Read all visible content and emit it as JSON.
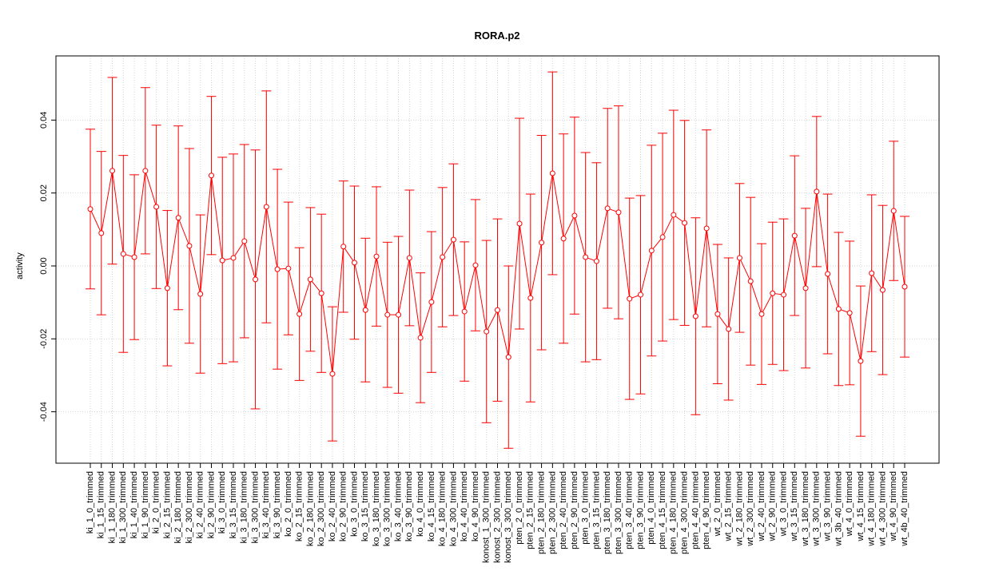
{
  "chart_data": {
    "type": "errorbar",
    "title": "RORA.p2",
    "y_label": "activity",
    "color": "red",
    "grid": true,
    "ylim": [
      -0.0541,
      0.0576
    ],
    "yticks": [
      -0.04,
      -0.02,
      {
        "value": 0,
        "label": "0.00"
      },
      0.02,
      0.04
    ],
    "categories": [
      "ki_1_0_trimmed",
      "ki_1_15_trimmed",
      "ki_1_180_trimmed",
      "ki_1_300_trimmed",
      "ki_1_40_trimmed",
      "ki_1_90_trimmed",
      "ki_2_0_trimmed",
      "ki_2_15_trimmed",
      "ki_2_180_trimmed",
      "ki_2_300_trimmed",
      "ki_2_40_trimmed",
      "ki_2_90_trimmed",
      "ki_3_0_trimmed",
      "ki_3_15_trimmed",
      "ki_3_180_trimmed",
      "ki_3_300_trimmed",
      "ki_3_40_trimmed",
      "ki_3_90_trimmed",
      "ko_2_0_trimmed",
      "ko_2_15_trimmed",
      "ko_2_180_trimmed",
      "ko_2_300_trimmed",
      "ko_2_40_trimmed",
      "ko_2_90_trimmed",
      "ko_3_0_trimmed",
      "ko_3_15_trimmed",
      "ko_3_180_trimmed",
      "ko_3_300_trimmed",
      "ko_3_40_trimmed",
      "ko_3_90_trimmed",
      "ko_4_0_trimmed",
      "ko_4_15_trimmed",
      "ko_4_180_trimmed",
      "ko_4_300_trimmed",
      "ko_4_40_trimmed",
      "ko_4_90_trimmed",
      "konost_1_300_trimmed",
      "konost_2_300_trimmed",
      "konost_3_300_trimmed",
      "pten_2_0_trimmed",
      "pten_2_15_trimmed",
      "pten_2_180_trimmed",
      "pten_2_300_trimmed",
      "pten_2_40_trimmed",
      "pten_2_90_trimmed",
      "pten_3_0_trimmed",
      "pten_3_15_trimmed",
      "pten_3_180_trimmed",
      "pten_3_300_trimmed",
      "pten_3_40_trimmed",
      "pten_3_90_trimmed",
      "pten_4_0_trimmed",
      "pten_4_15_trimmed",
      "pten_4_180_trimmed",
      "pten_4_300_trimmed",
      "pten_4_40_trimmed",
      "pten_4_90_trimmed",
      "wt_2_0_trimmed",
      "wt_2_15_trimmed",
      "wt_2_180_trimmed",
      "wt_2_300_trimmed",
      "wt_2_40_trimmed",
      "wt_2_90_trimmed",
      "wt_3_0_trimmed",
      "wt_3_15_trimmed",
      "wt_3_180_trimmed",
      "wt_3_300_trimmed",
      "wt_3_90_trimmed",
      "wt_3b_40_trimmed",
      "wt_4_0_trimmed",
      "wt_4_15_trimmed",
      "wt_4_180_trimmed",
      "wt_4_300_trimmed",
      "wt_4_90_trimmed",
      "wt_4b_40_trimmed"
    ],
    "values": [
      0.0156,
      0.009,
      0.0261,
      0.0033,
      0.0024,
      0.0261,
      0.0162,
      -0.0061,
      0.0132,
      0.0055,
      -0.0077,
      0.0248,
      0.0015,
      0.0022,
      0.0068,
      -0.0037,
      0.0162,
      -0.0009,
      -0.0007,
      -0.0132,
      -0.0037,
      -0.0075,
      -0.0296,
      0.0053,
      0.0009,
      -0.0121,
      0.0026,
      -0.0134,
      -0.0134,
      0.0022,
      -0.0197,
      -0.0099,
      0.0024,
      0.0072,
      -0.0125,
      0.0002,
      -0.018,
      -0.0121,
      -0.025,
      0.0116,
      -0.0088,
      0.0064,
      0.0254,
      0.0075,
      0.0138,
      0.0024,
      0.0013,
      0.0158,
      0.0147,
      -0.009,
      -0.0079,
      0.0042,
      0.0079,
      0.014,
      0.0118,
      -0.0138,
      0.0103,
      -0.0132,
      -0.0173,
      0.0022,
      -0.0042,
      -0.0132,
      -0.0075,
      -0.0079,
      0.0083,
      -0.0061,
      0.0204,
      -0.0022,
      -0.0118,
      -0.0129,
      -0.0261,
      -0.002,
      -0.0066,
      0.0151,
      -0.0057
    ],
    "errors": [
      0.0219,
      0.0224,
      0.0256,
      0.027,
      0.0226,
      0.0228,
      0.0224,
      0.0213,
      0.0252,
      0.0267,
      0.0217,
      0.0217,
      0.0283,
      0.0285,
      0.0265,
      0.0355,
      0.0318,
      0.0274,
      0.0182,
      0.0182,
      0.0197,
      0.0217,
      0.0184,
      0.018,
      0.021,
      0.0197,
      0.0191,
      0.0199,
      0.0215,
      0.0186,
      0.0178,
      0.0193,
      0.0191,
      0.0208,
      0.0191,
      0.018,
      0.025,
      0.025,
      0.025,
      0.0289,
      0.0285,
      0.0294,
      0.0278,
      0.0287,
      0.027,
      0.0287,
      0.027,
      0.0274,
      0.0292,
      0.0276,
      0.0272,
      0.0289,
      0.0285,
      0.0287,
      0.0281,
      0.027,
      0.027,
      0.0191,
      0.0195,
      0.0204,
      0.023,
      0.0193,
      0.0195,
      0.0208,
      0.0219,
      0.0219,
      0.0206,
      0.0219,
      0.021,
      0.0197,
      0.0206,
      0.0215,
      0.0232,
      0.0191,
      0.0193
    ]
  }
}
